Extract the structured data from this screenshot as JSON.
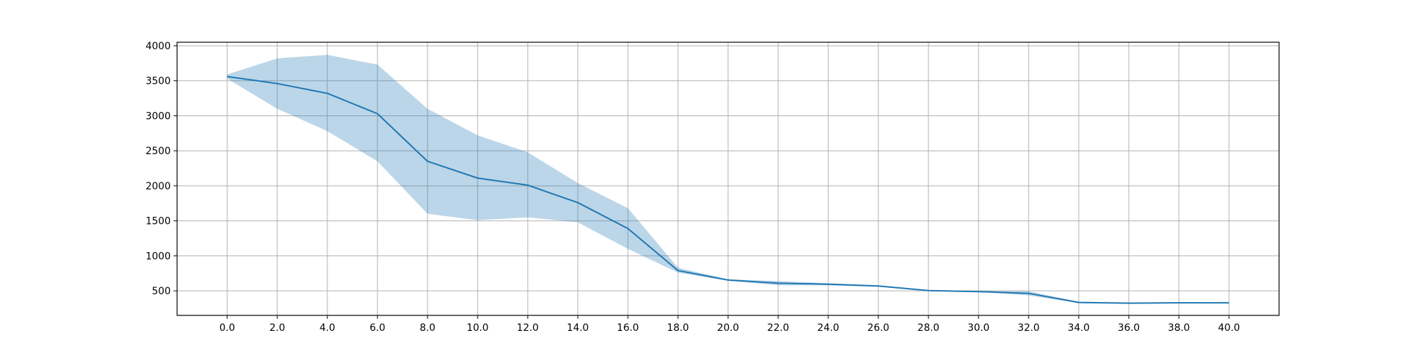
{
  "chart_data": {
    "type": "line",
    "title": "",
    "xlabel": "",
    "ylabel": "",
    "grid": true,
    "xlim": [
      -2,
      42
    ],
    "ylim": [
      150,
      4050
    ],
    "xticks": [
      0,
      2,
      4,
      6,
      8,
      10,
      12,
      14,
      16,
      18,
      20,
      22,
      24,
      26,
      28,
      30,
      32,
      34,
      36,
      38,
      40
    ],
    "xtick_labels": [
      "0.0",
      "2.0",
      "4.0",
      "6.0",
      "8.0",
      "10.0",
      "12.0",
      "14.0",
      "16.0",
      "18.0",
      "20.0",
      "22.0",
      "24.0",
      "26.0",
      "28.0",
      "30.0",
      "32.0",
      "34.0",
      "36.0",
      "38.0",
      "40.0"
    ],
    "yticks": [
      500,
      1000,
      1500,
      2000,
      2500,
      3000,
      3500,
      4000
    ],
    "ytick_labels": [
      "500",
      "1000",
      "1500",
      "2000",
      "2500",
      "3000",
      "3500",
      "4000"
    ],
    "series": [
      {
        "x": [
          0,
          2,
          4,
          6,
          8,
          10,
          12,
          14,
          16,
          18,
          20,
          22,
          24,
          26,
          28,
          30,
          32,
          34,
          36,
          38,
          40
        ],
        "values": [
          3560,
          3460,
          3320,
          3030,
          2350,
          2110,
          2010,
          1760,
          1390,
          790,
          655,
          610,
          595,
          570,
          505,
          490,
          465,
          335,
          325,
          330,
          330
        ],
        "band_lower": [
          3530,
          3100,
          2780,
          2350,
          1600,
          1510,
          1550,
          1480,
          1100,
          760,
          645,
          580,
          580,
          560,
          500,
          485,
          435,
          325,
          318,
          322,
          325
        ],
        "band_upper": [
          3590,
          3820,
          3870,
          3730,
          3100,
          2720,
          2480,
          2040,
          1680,
          830,
          665,
          640,
          610,
          580,
          510,
          495,
          495,
          345,
          332,
          338,
          335
        ],
        "color": "#1f77b4",
        "band_color": "#1f77b4",
        "band_opacity": 0.3
      }
    ]
  }
}
